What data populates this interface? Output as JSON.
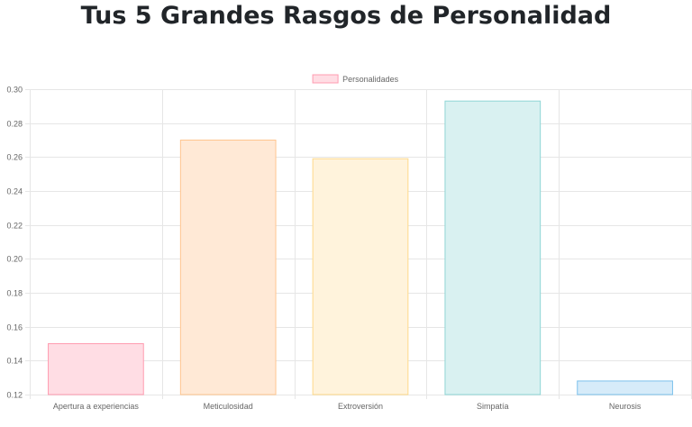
{
  "page": {
    "title": "Tus 5 Grandes Rasgos de Personalidad"
  },
  "chart_data": {
    "type": "bar",
    "title": "",
    "xlabel": "",
    "ylabel": "",
    "categories": [
      "Apertura a experiencias",
      "Meticulosidad",
      "Extroversión",
      "Simpatía",
      "Neurosis"
    ],
    "series": [
      {
        "name": "Personalidades",
        "values": [
          0.15,
          0.27,
          0.259,
          0.293,
          0.128
        ],
        "fill_colors": [
          "#ffdde4",
          "#ffe9d6",
          "#fff3dc",
          "#d9f1f1",
          "#d6ebf9"
        ],
        "border_colors": [
          "#ff9cb1",
          "#ffc58f",
          "#ffd98a",
          "#8fd6d6",
          "#7cc1ec"
        ]
      }
    ],
    "ylim": [
      0.12,
      0.3
    ],
    "yticks": [
      "0.30",
      "0.28",
      "0.26",
      "0.24",
      "0.22",
      "0.20",
      "0.18",
      "0.16",
      "0.14",
      "0.12"
    ],
    "grid": true,
    "legend": "top-center",
    "colors": {
      "grid": "#e6e6e6",
      "tick_text": "#666666"
    }
  }
}
